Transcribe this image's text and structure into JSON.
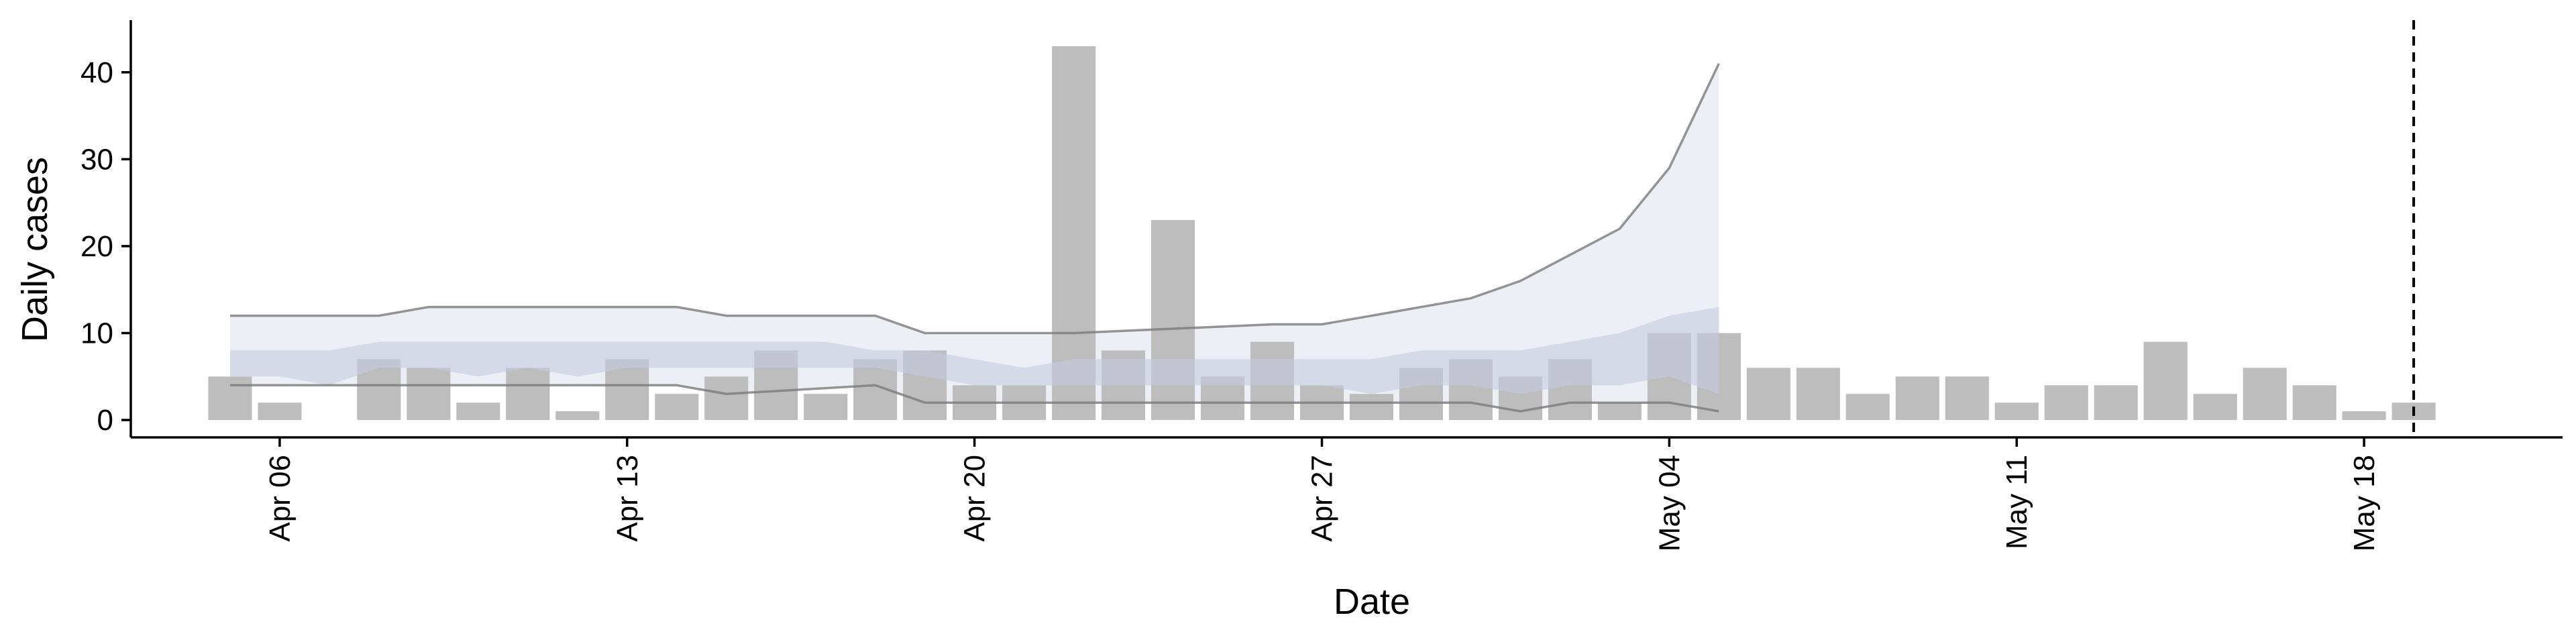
{
  "chart_data": {
    "type": "bar",
    "xlabel": "Date",
    "ylabel": "Daily cases",
    "ylim": [
      -2,
      46
    ],
    "yticks": [
      0,
      10,
      20,
      30,
      40
    ],
    "xlim": [
      "2020-04-03",
      "2020-05-22"
    ],
    "xticks": [
      {
        "date": "2020-04-06",
        "label": "Apr 06"
      },
      {
        "date": "2020-04-13",
        "label": "Apr 13"
      },
      {
        "date": "2020-04-20",
        "label": "Apr 20"
      },
      {
        "date": "2020-04-27",
        "label": "Apr 27"
      },
      {
        "date": "2020-05-04",
        "label": "May 04"
      },
      {
        "date": "2020-05-11",
        "label": "May 11"
      },
      {
        "date": "2020-05-18",
        "label": "May 18"
      }
    ],
    "grid": false,
    "legend": "none",
    "bars": {
      "x": [
        "2020-04-05",
        "2020-04-06",
        "2020-04-07",
        "2020-04-08",
        "2020-04-09",
        "2020-04-10",
        "2020-04-11",
        "2020-04-12",
        "2020-04-13",
        "2020-04-14",
        "2020-04-15",
        "2020-04-16",
        "2020-04-17",
        "2020-04-18",
        "2020-04-19",
        "2020-04-20",
        "2020-04-21",
        "2020-04-22",
        "2020-04-23",
        "2020-04-24",
        "2020-04-25",
        "2020-04-26",
        "2020-04-27",
        "2020-04-28",
        "2020-04-29",
        "2020-04-30",
        "2020-05-01",
        "2020-05-02",
        "2020-05-03",
        "2020-05-04",
        "2020-05-05",
        "2020-05-06",
        "2020-05-07",
        "2020-05-08",
        "2020-05-09",
        "2020-05-10",
        "2020-05-11",
        "2020-05-12",
        "2020-05-13",
        "2020-05-14",
        "2020-05-15",
        "2020-05-16",
        "2020-05-17",
        "2020-05-18",
        "2020-05-19"
      ],
      "values": [
        5,
        2,
        0,
        7,
        6,
        2,
        6,
        1,
        7,
        3,
        5,
        8,
        3,
        7,
        8,
        4,
        4,
        43,
        8,
        23,
        5,
        9,
        4,
        3,
        6,
        7,
        5,
        7,
        2,
        10,
        10,
        6,
        6,
        3,
        5,
        5,
        2,
        4,
        4,
        9,
        3,
        6,
        4,
        1,
        2
      ]
    },
    "bands": [
      {
        "x": [
          "2020-04-05",
          "2020-04-08",
          "2020-04-09",
          "2020-04-14",
          "2020-04-15",
          "2020-04-18",
          "2020-04-19",
          "2020-04-21",
          "2020-04-22",
          "2020-04-26",
          "2020-04-27",
          "2020-04-28",
          "2020-04-29",
          "2020-04-30",
          "2020-05-01",
          "2020-05-02",
          "2020-05-03",
          "2020-05-04",
          "2020-05-05"
        ],
        "lower": [
          4,
          4,
          4,
          4,
          3,
          4,
          2,
          2,
          2,
          2,
          2,
          2,
          2,
          2,
          1,
          2,
          2,
          2,
          1
        ],
        "upper": [
          12,
          12,
          13,
          13,
          12,
          12,
          10,
          10,
          10,
          11,
          11,
          12,
          13,
          14,
          16,
          19,
          22,
          29,
          41
        ]
      },
      {
        "x": [
          "2020-04-05",
          "2020-04-06",
          "2020-04-07",
          "2020-04-08",
          "2020-04-09",
          "2020-04-10",
          "2020-04-11",
          "2020-04-12",
          "2020-04-13",
          "2020-04-14",
          "2020-04-15",
          "2020-04-16",
          "2020-04-17",
          "2020-04-18",
          "2020-04-19",
          "2020-04-20",
          "2020-04-21",
          "2020-04-22",
          "2020-04-23",
          "2020-04-24",
          "2020-04-25",
          "2020-04-26",
          "2020-04-27",
          "2020-04-28",
          "2020-04-29",
          "2020-04-30",
          "2020-05-01",
          "2020-05-02",
          "2020-05-03",
          "2020-05-04",
          "2020-05-05"
        ],
        "lower": [
          5,
          5,
          4,
          6,
          6,
          5,
          6,
          5,
          6,
          6,
          6,
          6,
          6,
          6,
          5,
          4,
          4,
          4,
          4,
          4,
          4,
          4,
          4,
          3,
          4,
          4,
          3,
          4,
          4,
          5,
          3
        ],
        "upper": [
          8,
          8,
          8,
          9,
          9,
          9,
          9,
          9,
          9,
          9,
          9,
          9,
          9,
          8,
          8,
          7,
          6,
          7,
          7,
          7,
          7,
          7,
          7,
          7,
          8,
          8,
          8,
          9,
          10,
          12,
          13
        ]
      }
    ],
    "vline": "2020-05-19"
  },
  "colors": {
    "bar": "#bdbdbd",
    "outer_band": "#eceff5",
    "inner_band": "#c4cbe0",
    "band_line": "#7a7a7a",
    "axis": "#000000",
    "vline": "#000000"
  }
}
